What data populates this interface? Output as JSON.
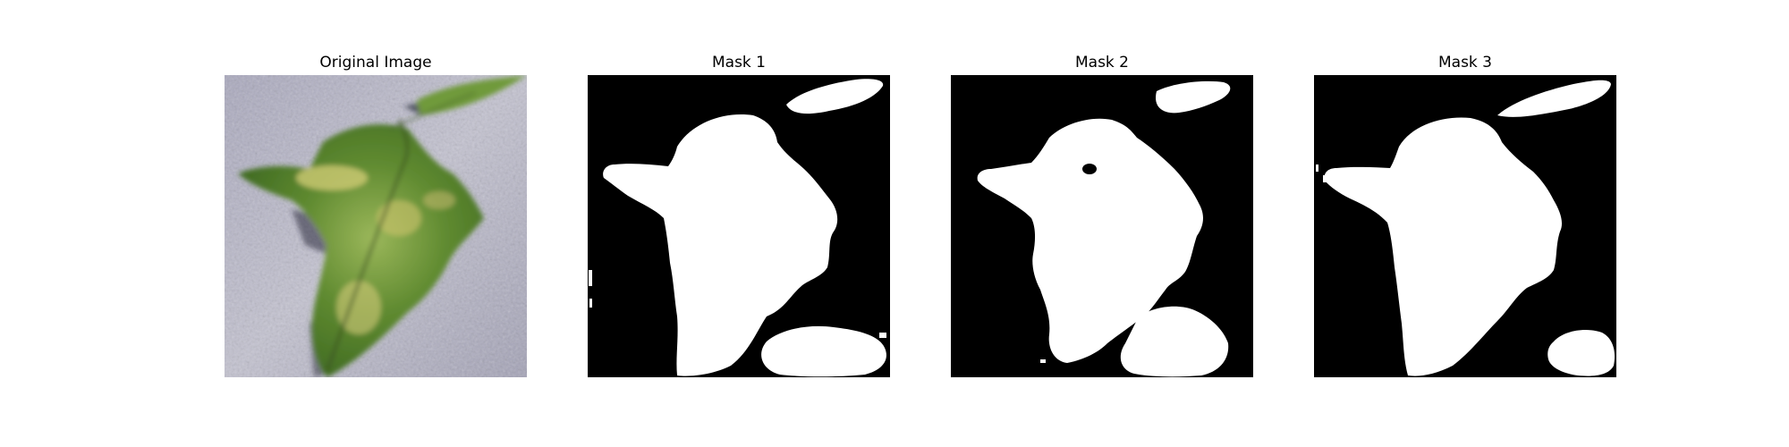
{
  "figure": {
    "panels": [
      {
        "title": "Original Image"
      },
      {
        "title": "Mask 1"
      },
      {
        "title": "Mask 2"
      },
      {
        "title": "Mask 3"
      }
    ]
  },
  "colors": {
    "mask_background": "#000000",
    "mask_foreground": "#ffffff",
    "leaf_green": "#6f9a3c",
    "leaf_yellow": "#c9c46a",
    "surface_gray": "#b9b8c8"
  }
}
